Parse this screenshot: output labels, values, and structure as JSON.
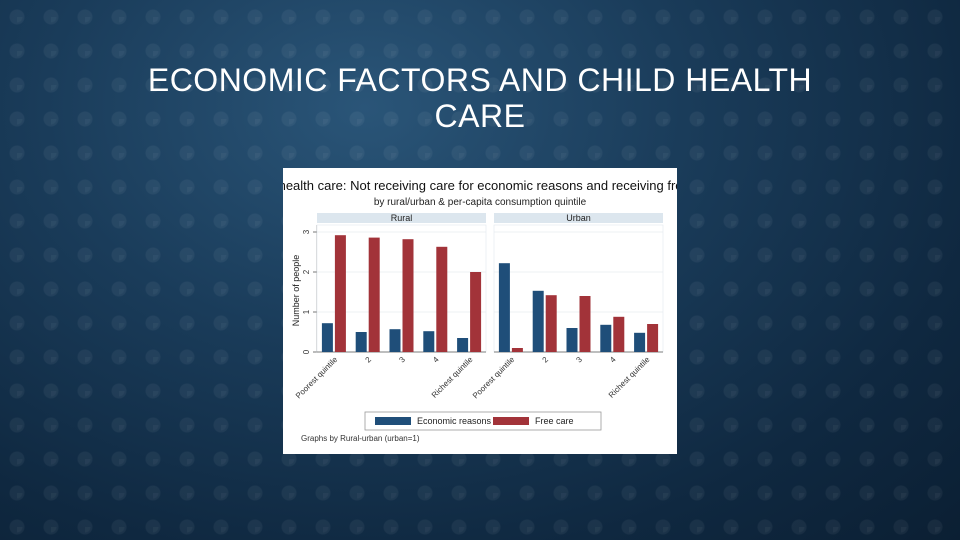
{
  "slide": {
    "title": "ECONOMIC FACTORS AND CHILD HEALTH CARE"
  },
  "chart_data": {
    "type": "bar",
    "title": "Child health care: Not receiving care for economic reasons and receiving free care",
    "subtitle": "by rural/urban & per-capita consumption quintile",
    "ylabel": "Number of people",
    "ylim": [
      0,
      3
    ],
    "yticks": [
      0,
      1,
      2,
      3
    ],
    "grid": true,
    "legend_position": "bottom",
    "note": "Graphs by Rural-urban (urban=1)",
    "categories": [
      "Poorest quintile",
      "2",
      "3",
      "4",
      "Richest quintile"
    ],
    "colors": {
      "Economic reasons": "#1f4e79",
      "Free care": "#a23339"
    },
    "panels": [
      {
        "name": "Rural",
        "series": [
          {
            "name": "Economic reasons",
            "values": [
              0.72,
              0.5,
              0.57,
              0.52,
              0.35
            ]
          },
          {
            "name": "Free care",
            "values": [
              2.92,
              2.86,
              2.82,
              2.63,
              2.0
            ]
          }
        ]
      },
      {
        "name": "Urban",
        "series": [
          {
            "name": "Economic reasons",
            "values": [
              2.22,
              1.53,
              0.6,
              0.68,
              0.48
            ]
          },
          {
            "name": "Free care",
            "values": [
              0.1,
              1.42,
              1.4,
              0.88,
              0.7
            ]
          }
        ]
      }
    ]
  }
}
